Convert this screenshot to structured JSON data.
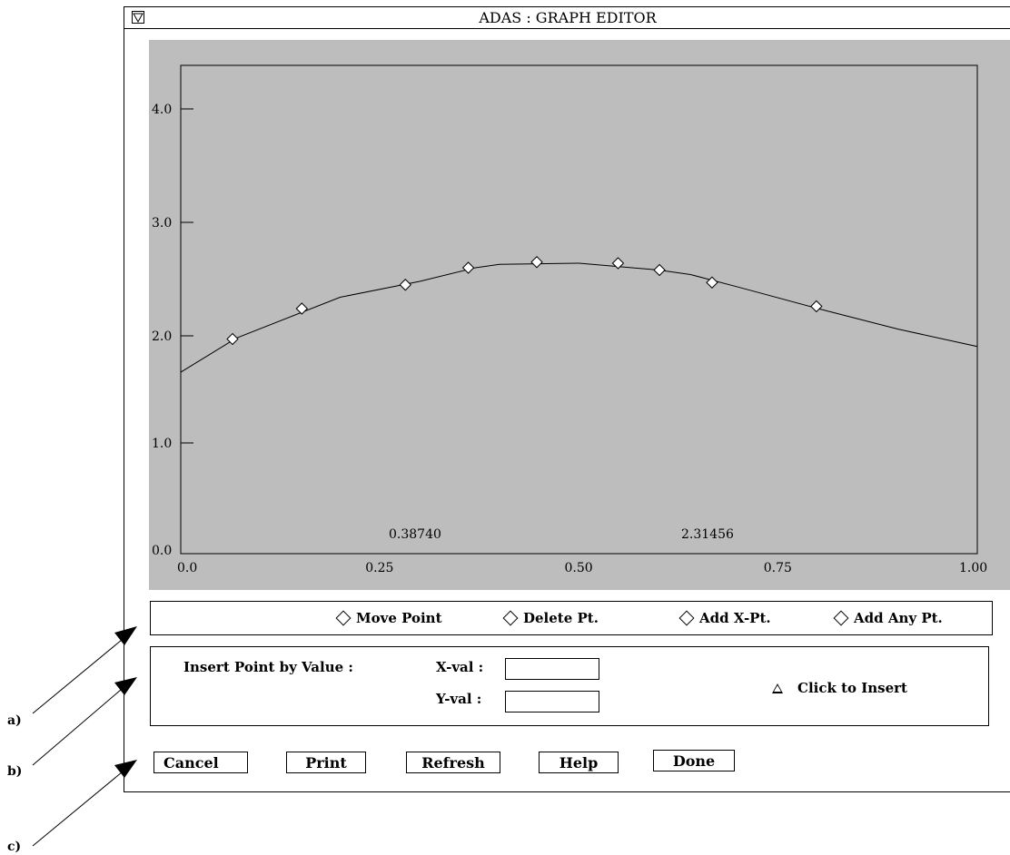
{
  "window": {
    "title": "ADAS : GRAPH EDITOR"
  },
  "plot": {
    "background": "#bdbdbd",
    "readout_x": "0.38740",
    "readout_y": "2.31456"
  },
  "chart_data": {
    "type": "line",
    "xlim": [
      0.0,
      1.0
    ],
    "ylim": [
      0.0,
      4.4
    ],
    "x_ticks": [
      "0.0",
      "0.25",
      "0.50",
      "0.75",
      "1.00"
    ],
    "y_ticks": [
      "0.0",
      "1.0",
      "2.0",
      "3.0",
      "4.0"
    ],
    "curve": {
      "x": [
        0.0,
        0.07,
        0.2,
        0.3,
        0.37,
        0.4,
        0.5,
        0.6,
        0.64,
        0.7,
        0.8,
        0.9,
        1.0
      ],
      "y": [
        1.66,
        1.98,
        2.34,
        2.48,
        2.6,
        2.63,
        2.64,
        2.58,
        2.54,
        2.43,
        2.24,
        2.06,
        1.9
      ]
    },
    "points": {
      "x": [
        0.065,
        0.152,
        0.282,
        0.361,
        0.447,
        0.549,
        0.601,
        0.667,
        0.798
      ],
      "y": [
        1.97,
        2.24,
        2.45,
        2.6,
        2.65,
        2.64,
        2.58,
        2.47,
        2.26
      ]
    }
  },
  "modes": [
    {
      "label": "Move Point",
      "icon": "diamond-icon"
    },
    {
      "label": "Delete Pt.",
      "icon": "diamond-icon"
    },
    {
      "label": "Add X-Pt.",
      "icon": "diamond-icon"
    },
    {
      "label": "Add Any Pt.",
      "icon": "diamond-icon"
    }
  ],
  "insert": {
    "title": "Insert Point by Value :",
    "xval_label": "X-val :",
    "yval_label": "Y-val :",
    "xval_value": "",
    "yval_value": "",
    "click_label": "Click to Insert"
  },
  "buttons": {
    "cancel": "Cancel",
    "print": "Print",
    "refresh": "Refresh",
    "help": "Help",
    "done": "Done"
  },
  "callouts": {
    "a": "a)",
    "b": "b)",
    "c": "c)"
  }
}
